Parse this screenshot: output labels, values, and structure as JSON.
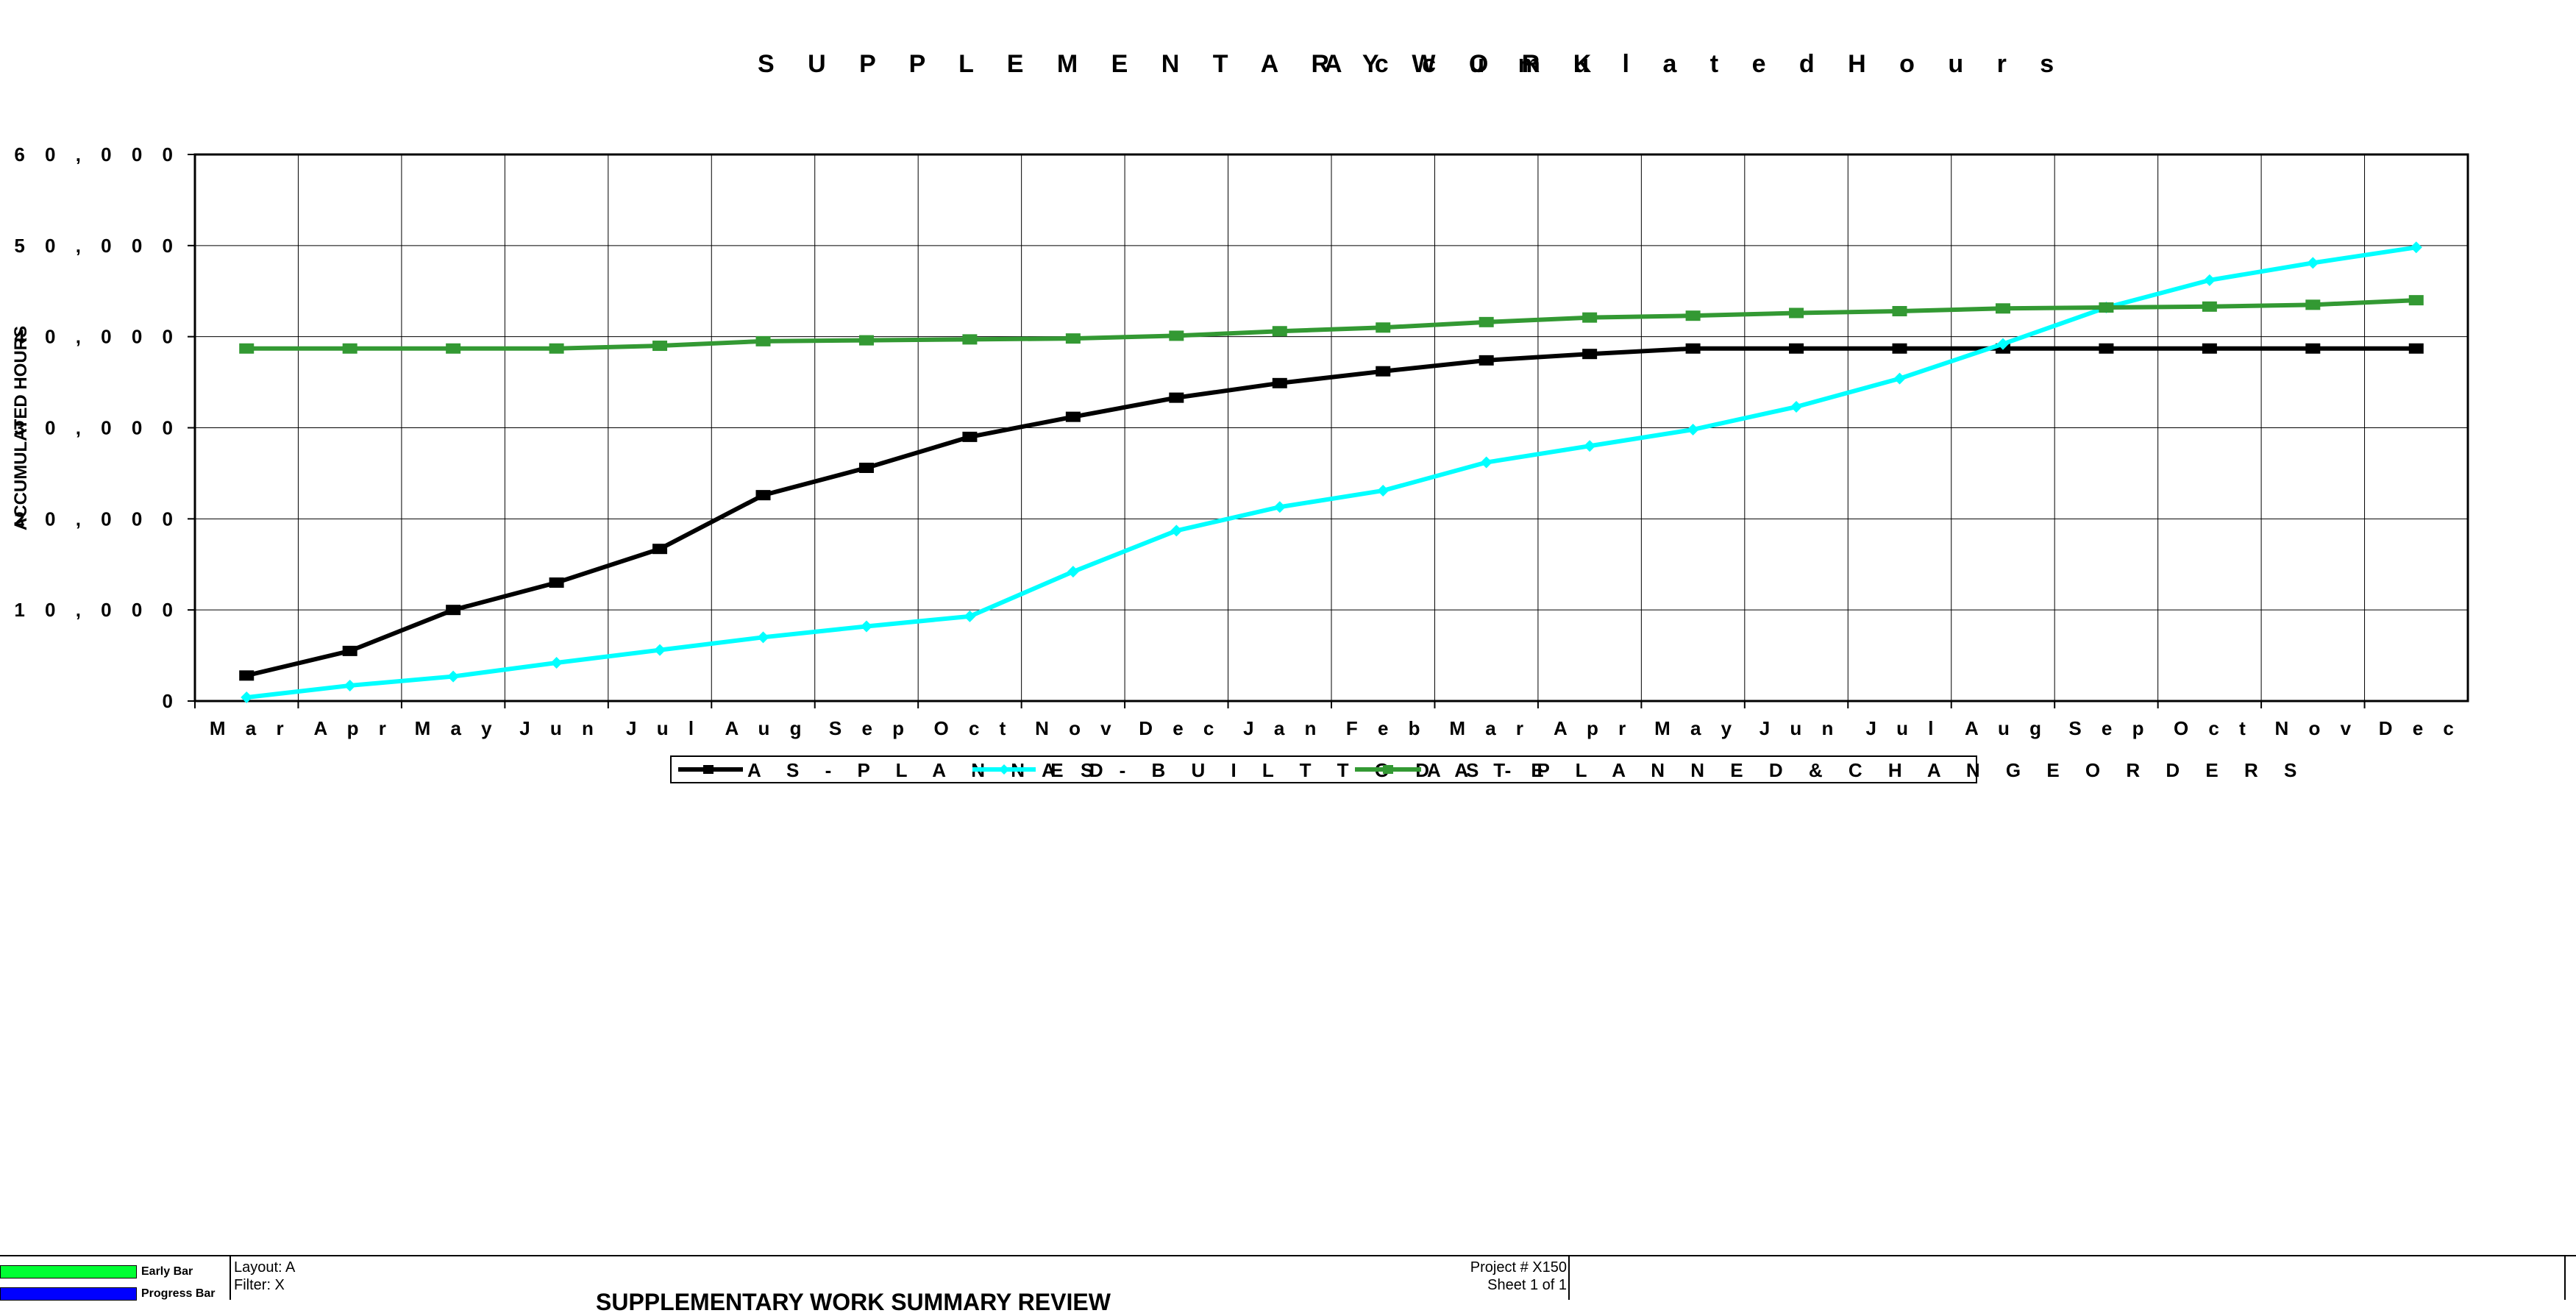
{
  "chart_data": {
    "type": "line",
    "title": "S U P P L E M E N T A R Y   W O R K",
    "subtitle": "A c c u m u l a t e d   H o u r s",
    "ylabel": "ACCUMULATED HOURS",
    "xlabel": "",
    "ylim": [
      0,
      60000
    ],
    "y_ticks": [
      0,
      10000,
      20000,
      30000,
      40000,
      50000,
      60000
    ],
    "y_tick_labels": [
      "0",
      "1 0 , 0 0 0",
      "2 0 , 0 0 0",
      "3 0 , 0 0 0",
      "4 0 , 0 0 0",
      "5 0 , 0 0 0",
      "6 0 , 0 0 0"
    ],
    "categories": [
      "Mar",
      "Apr",
      "May",
      "Jun",
      "Jul",
      "Aug",
      "Sep",
      "Oct",
      "Nov",
      "Dec",
      "Jan",
      "Feb",
      "Mar",
      "Apr",
      "May",
      "Jun",
      "Jul",
      "Aug",
      "Sep",
      "Oct",
      "Nov",
      "Dec"
    ],
    "grid": true,
    "legend_position": "bottom",
    "series": [
      {
        "name": "AS-PLANNED",
        "color": "#000000",
        "marker": "square",
        "values": [
          2800,
          5500,
          10000,
          13000,
          16700,
          22600,
          25600,
          29000,
          31200,
          33300,
          34900,
          36200,
          37400,
          38100,
          38700,
          38700,
          38700,
          38700,
          38700,
          38700,
          38700,
          38700
        ]
      },
      {
        "name": "AS-BUILT TO DATE",
        "color": "#00ffff",
        "marker": "diamond",
        "values": [
          400,
          1700,
          2700,
          4200,
          5600,
          7000,
          8200,
          9300,
          14200,
          18700,
          21300,
          23100,
          26200,
          28000,
          29800,
          32300,
          35400,
          39200,
          43200,
          46200,
          48100,
          49800
        ]
      },
      {
        "name": "AS-PLANNED & CHANGE ORDERS",
        "color": "#339933",
        "marker": "square",
        "values": [
          38700,
          38700,
          38700,
          38700,
          39000,
          39500,
          39600,
          39700,
          39800,
          40100,
          40600,
          41000,
          41600,
          42100,
          42300,
          42600,
          42800,
          43100,
          43200,
          43300,
          43500,
          44000
        ]
      }
    ]
  },
  "legend_labels": [
    "A S - P L A N N E D",
    "A S - B U I L T   T O   D A T E",
    "A S - P L A N N E D   &   C H A N G E   O R D E R S"
  ],
  "footer": {
    "early_bar_label": "Early Bar",
    "early_bar_color": "#00ff33",
    "progress_bar_label": "Progress Bar",
    "progress_bar_color": "#0000ff",
    "layout": "Layout: A",
    "filter": "Filter: X",
    "report_title": "SUPPLEMENTARY WORK SUMMARY REVIEW",
    "project": "Project # X150",
    "sheet": "Sheet 1 of 1"
  }
}
